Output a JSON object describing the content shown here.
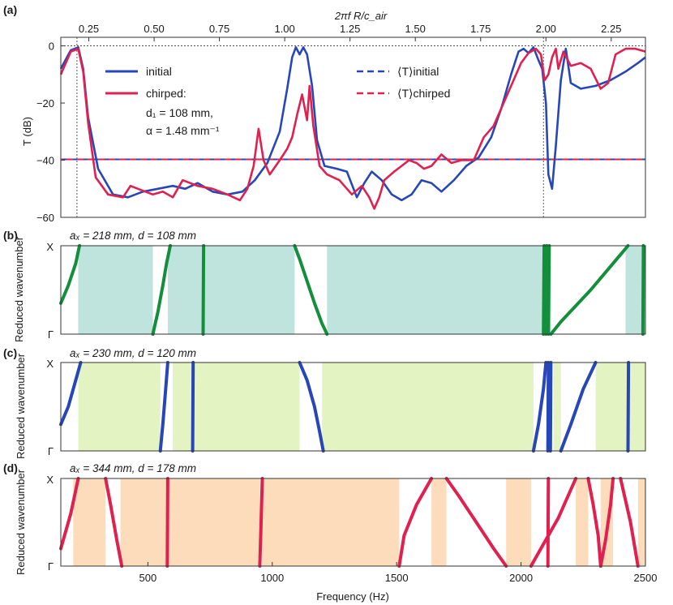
{
  "chart_data": [
    {
      "type": "line",
      "panel": "(a)",
      "title_top_axis": "2πf R/c_air",
      "top_axis_ticks": [
        "0.25",
        "0.50",
        "0.75",
        "1.00",
        "1.25",
        "1.50",
        "1.75",
        "2.00",
        "2.25"
      ],
      "top_axis_values": [
        0.25,
        0.5,
        0.75,
        1.0,
        1.25,
        1.5,
        1.75,
        2.0,
        2.25
      ],
      "ylabel": "T (dB)",
      "ylim": [
        -60,
        3
      ],
      "y_ticks": [
        "0",
        "−20",
        "−40",
        "−60"
      ],
      "y_tick_values": [
        0,
        -20,
        -40,
        -60
      ],
      "xlim": [
        150,
        2500
      ],
      "reference_vlines_hz": [
        215,
        2090
      ],
      "reference_hline_db": 0,
      "legend": {
        "initial": "initial",
        "chirped": "chirped:",
        "chirped_d1": "d₁ = 108 mm,",
        "chirped_alpha": "α = 1.48 mm⁻¹",
        "avg_initial": "⟨T⟩initial",
        "avg_chirped": "⟨T⟩chirped"
      },
      "mean_line_db": -39.7,
      "colors": {
        "initial": "#2747b8",
        "chirped": "#e0204f"
      },
      "series": [
        {
          "name": "initial",
          "x": [
            150,
            190,
            220,
            240,
            260,
            300,
            360,
            420,
            480,
            540,
            600,
            650,
            700,
            760,
            820,
            880,
            930,
            980,
            1030,
            1060,
            1080,
            1095,
            1110,
            1125,
            1140,
            1160,
            1180,
            1210,
            1260,
            1300,
            1340,
            1370,
            1400,
            1440,
            1480,
            1520,
            1560,
            1600,
            1640,
            1680,
            1730,
            1780,
            1830,
            1880,
            1920,
            1960,
            1990,
            2010,
            2030,
            2050,
            2070,
            2085,
            2100,
            2110,
            2125,
            2140,
            2160,
            2180,
            2200,
            2240,
            2300,
            2360,
            2420,
            2470,
            2500
          ],
          "values": [
            -8,
            -1.5,
            -0.5,
            -8,
            -25,
            -43,
            -52,
            -53,
            -51,
            -50,
            -49,
            -50,
            -48,
            -51,
            -52,
            -51,
            -47,
            -41,
            -30,
            -15,
            -4,
            -0.5,
            -3,
            -0.5,
            -3,
            -14,
            -33,
            -42,
            -43,
            -44,
            -53,
            -48,
            -44,
            -47,
            -52,
            -54,
            -52,
            -47,
            -48,
            -51,
            -47,
            -42,
            -39,
            -32,
            -22,
            -10,
            -2,
            -1,
            -2.5,
            -0.5,
            -5,
            -8,
            -20,
            -45,
            -50,
            -35,
            -12,
            -1,
            -13,
            -15,
            -14,
            -12,
            -9,
            -6,
            -4
          ]
        },
        {
          "name": "chirped",
          "x": [
            150,
            190,
            220,
            240,
            260,
            290,
            340,
            400,
            430,
            460,
            520,
            560,
            600,
            640,
            700,
            760,
            820,
            870,
            900,
            925,
            945,
            965,
            990,
            1030,
            1060,
            1080,
            1100,
            1120,
            1140,
            1150,
            1165,
            1190,
            1220,
            1270,
            1320,
            1360,
            1390,
            1410,
            1430,
            1450,
            1490,
            1520,
            1550,
            1580,
            1610,
            1640,
            1680,
            1720,
            1760,
            1810,
            1850,
            1890,
            1930,
            1970,
            2000,
            2030,
            2060,
            2080,
            2095,
            2110,
            2125,
            2140,
            2150,
            2170,
            2200,
            2240,
            2280,
            2320,
            2350,
            2380,
            2420,
            2460,
            2500
          ],
          "values": [
            -10,
            -2,
            -1,
            -9,
            -27,
            -46,
            -52,
            -53,
            -49,
            -50,
            -52,
            -51,
            -53,
            -47,
            -49,
            -50,
            -52,
            -54,
            -50,
            -42,
            -29,
            -40,
            -45,
            -40,
            -36,
            -32,
            -24,
            -17,
            -26,
            -14,
            -28,
            -42,
            -45,
            -47,
            -52,
            -49,
            -53,
            -57,
            -53,
            -47,
            -44,
            -42,
            -40,
            -41,
            -43,
            -42,
            -38,
            -41,
            -40,
            -40,
            -32,
            -28,
            -20,
            -12,
            -6,
            -2.5,
            -1,
            -3,
            -12,
            -10,
            -4,
            -1,
            -8,
            -2,
            -7,
            -6,
            -8,
            -15,
            -13,
            -3,
            -1,
            -1,
            -2
          ]
        }
      ]
    },
    {
      "type": "line",
      "panel": "(b)",
      "title": "aₓ = 218 mm, d = 108 mm",
      "ylabel": "Reduced wavenumber",
      "y_ticks": [
        "X",
        "Γ"
      ],
      "xlim": [
        150,
        2500
      ],
      "color": "#138f3c",
      "band_color": "#bfe3dd",
      "band_gaps_hz": [
        [
          220,
          520
        ],
        [
          580,
          1090
        ],
        [
          1220,
          2120
        ],
        [
          2420,
          2500
        ]
      ],
      "branches": [
        {
          "x": [
            150,
            180,
            210,
            225
          ],
          "k": [
            0.35,
            0.55,
            0.8,
            1.0
          ]
        },
        {
          "x": [
            520,
            540,
            560,
            575,
            590
          ],
          "k": [
            0.0,
            0.25,
            0.55,
            0.8,
            1.0
          ]
        },
        {
          "x": [
            722,
            724
          ],
          "k": [
            0.0,
            1.0
          ]
        },
        {
          "x": [
            1090,
            1110,
            1140,
            1170,
            1200,
            1220
          ],
          "k": [
            1.0,
            0.85,
            0.6,
            0.35,
            0.12,
            0.0
          ]
        },
        {
          "x": [
            2090,
            2093
          ],
          "k": [
            0.0,
            1.0
          ]
        },
        {
          "x": [
            2100,
            2103
          ],
          "k": [
            0.0,
            1.0
          ]
        },
        {
          "x": [
            2110,
            2113
          ],
          "k": [
            0.0,
            1.0
          ]
        },
        {
          "x": [
            2120,
            2160,
            2220,
            2280,
            2340,
            2400,
            2430
          ],
          "k": [
            0.0,
            0.14,
            0.32,
            0.5,
            0.7,
            0.9,
            1.0
          ]
        },
        {
          "x": [
            2490,
            2492
          ],
          "k": [
            0.0,
            1.0
          ]
        }
      ]
    },
    {
      "type": "line",
      "panel": "(c)",
      "title": "aₓ = 230 mm, d = 120 mm",
      "ylabel": "Reduced wavenumber",
      "y_ticks": [
        "X",
        "Γ"
      ],
      "xlim": [
        150,
        2500
      ],
      "color": "#2747b8",
      "band_color": "#e3f4c2",
      "band_gaps_hz": [
        [
          220,
          550
        ],
        [
          600,
          1110
        ],
        [
          1200,
          2050
        ],
        [
          2130,
          2160
        ],
        [
          2300,
          2500
        ]
      ],
      "branches": [
        {
          "x": [
            150,
            180,
            210,
            230
          ],
          "k": [
            0.3,
            0.5,
            0.8,
            1.0
          ]
        },
        {
          "x": [
            550,
            560,
            570,
            580
          ],
          "k": [
            0.0,
            0.3,
            0.65,
            1.0
          ]
        },
        {
          "x": [
            680,
            682
          ],
          "k": [
            0.0,
            1.0
          ]
        },
        {
          "x": [
            1110,
            1140,
            1170,
            1190,
            1205
          ],
          "k": [
            1.0,
            0.8,
            0.5,
            0.22,
            0.0
          ]
        },
        {
          "x": [
            2050,
            2070,
            2090,
            2100
          ],
          "k": [
            0.0,
            0.3,
            0.7,
            1.0
          ]
        },
        {
          "x": [
            2108,
            2110
          ],
          "k": [
            0.0,
            1.0
          ]
        },
        {
          "x": [
            2118,
            2120
          ],
          "k": [
            0.0,
            1.0
          ]
        },
        {
          "x": [
            2160,
            2200,
            2250,
            2300
          ],
          "k": [
            0.0,
            0.3,
            0.7,
            1.0
          ]
        },
        {
          "x": [
            2430,
            2432
          ],
          "k": [
            0.0,
            1.0
          ]
        }
      ]
    },
    {
      "type": "line",
      "panel": "(d)",
      "title": "aₓ = 344 mm, d = 178 mm",
      "ylabel": "Reduced wavenumber",
      "y_ticks": [
        "X",
        "Γ"
      ],
      "xlabel": "Frequency (Hz)",
      "x_ticks": [
        "500",
        "1000",
        "1500",
        "2000",
        "2500"
      ],
      "x_tick_values": [
        500,
        1000,
        1500,
        2000,
        2500
      ],
      "xlim": [
        150,
        2500
      ],
      "color": "#e0204f",
      "band_color": "#fddcbc",
      "band_gaps_hz": [
        [
          200,
          330
        ],
        [
          390,
          950
        ],
        [
          960,
          1510
        ],
        [
          1640,
          1700
        ],
        [
          1940,
          2040
        ],
        [
          2220,
          2270
        ],
        [
          2320,
          2370
        ],
        [
          2470,
          2500
        ]
      ],
      "branches": [
        {
          "x": [
            150,
            190,
            220
          ],
          "k": [
            0.2,
            0.6,
            1.0
          ]
        },
        {
          "x": [
            330,
            350,
            375,
            395
          ],
          "k": [
            1.0,
            0.7,
            0.3,
            0.0
          ]
        },
        {
          "x": [
            578,
            580
          ],
          "k": [
            0.0,
            1.0
          ]
        },
        {
          "x": [
            950,
            955,
            960
          ],
          "k": [
            0.0,
            0.5,
            1.0
          ]
        },
        {
          "x": [
            1510,
            1530,
            1580,
            1640
          ],
          "k": [
            0.0,
            0.35,
            0.7,
            1.0
          ]
        },
        {
          "x": [
            1700,
            1750,
            1820,
            1890,
            1940
          ],
          "k": [
            1.0,
            0.8,
            0.5,
            0.2,
            0.0
          ]
        },
        {
          "x": [
            2040,
            2080,
            2150,
            2220
          ],
          "k": [
            0.0,
            0.2,
            0.55,
            1.0
          ]
        },
        {
          "x": [
            2108,
            2110
          ],
          "k": [
            0.0,
            1.0
          ]
        },
        {
          "x": [
            2270,
            2290,
            2310,
            2320
          ],
          "k": [
            1.0,
            0.7,
            0.35,
            0.0
          ]
        },
        {
          "x": [
            2320,
            2340,
            2360,
            2370
          ],
          "k": [
            0.0,
            0.3,
            0.7,
            1.0
          ]
        },
        {
          "x": [
            2400,
            2440,
            2470
          ],
          "k": [
            1.0,
            0.5,
            0.0
          ]
        }
      ]
    }
  ]
}
